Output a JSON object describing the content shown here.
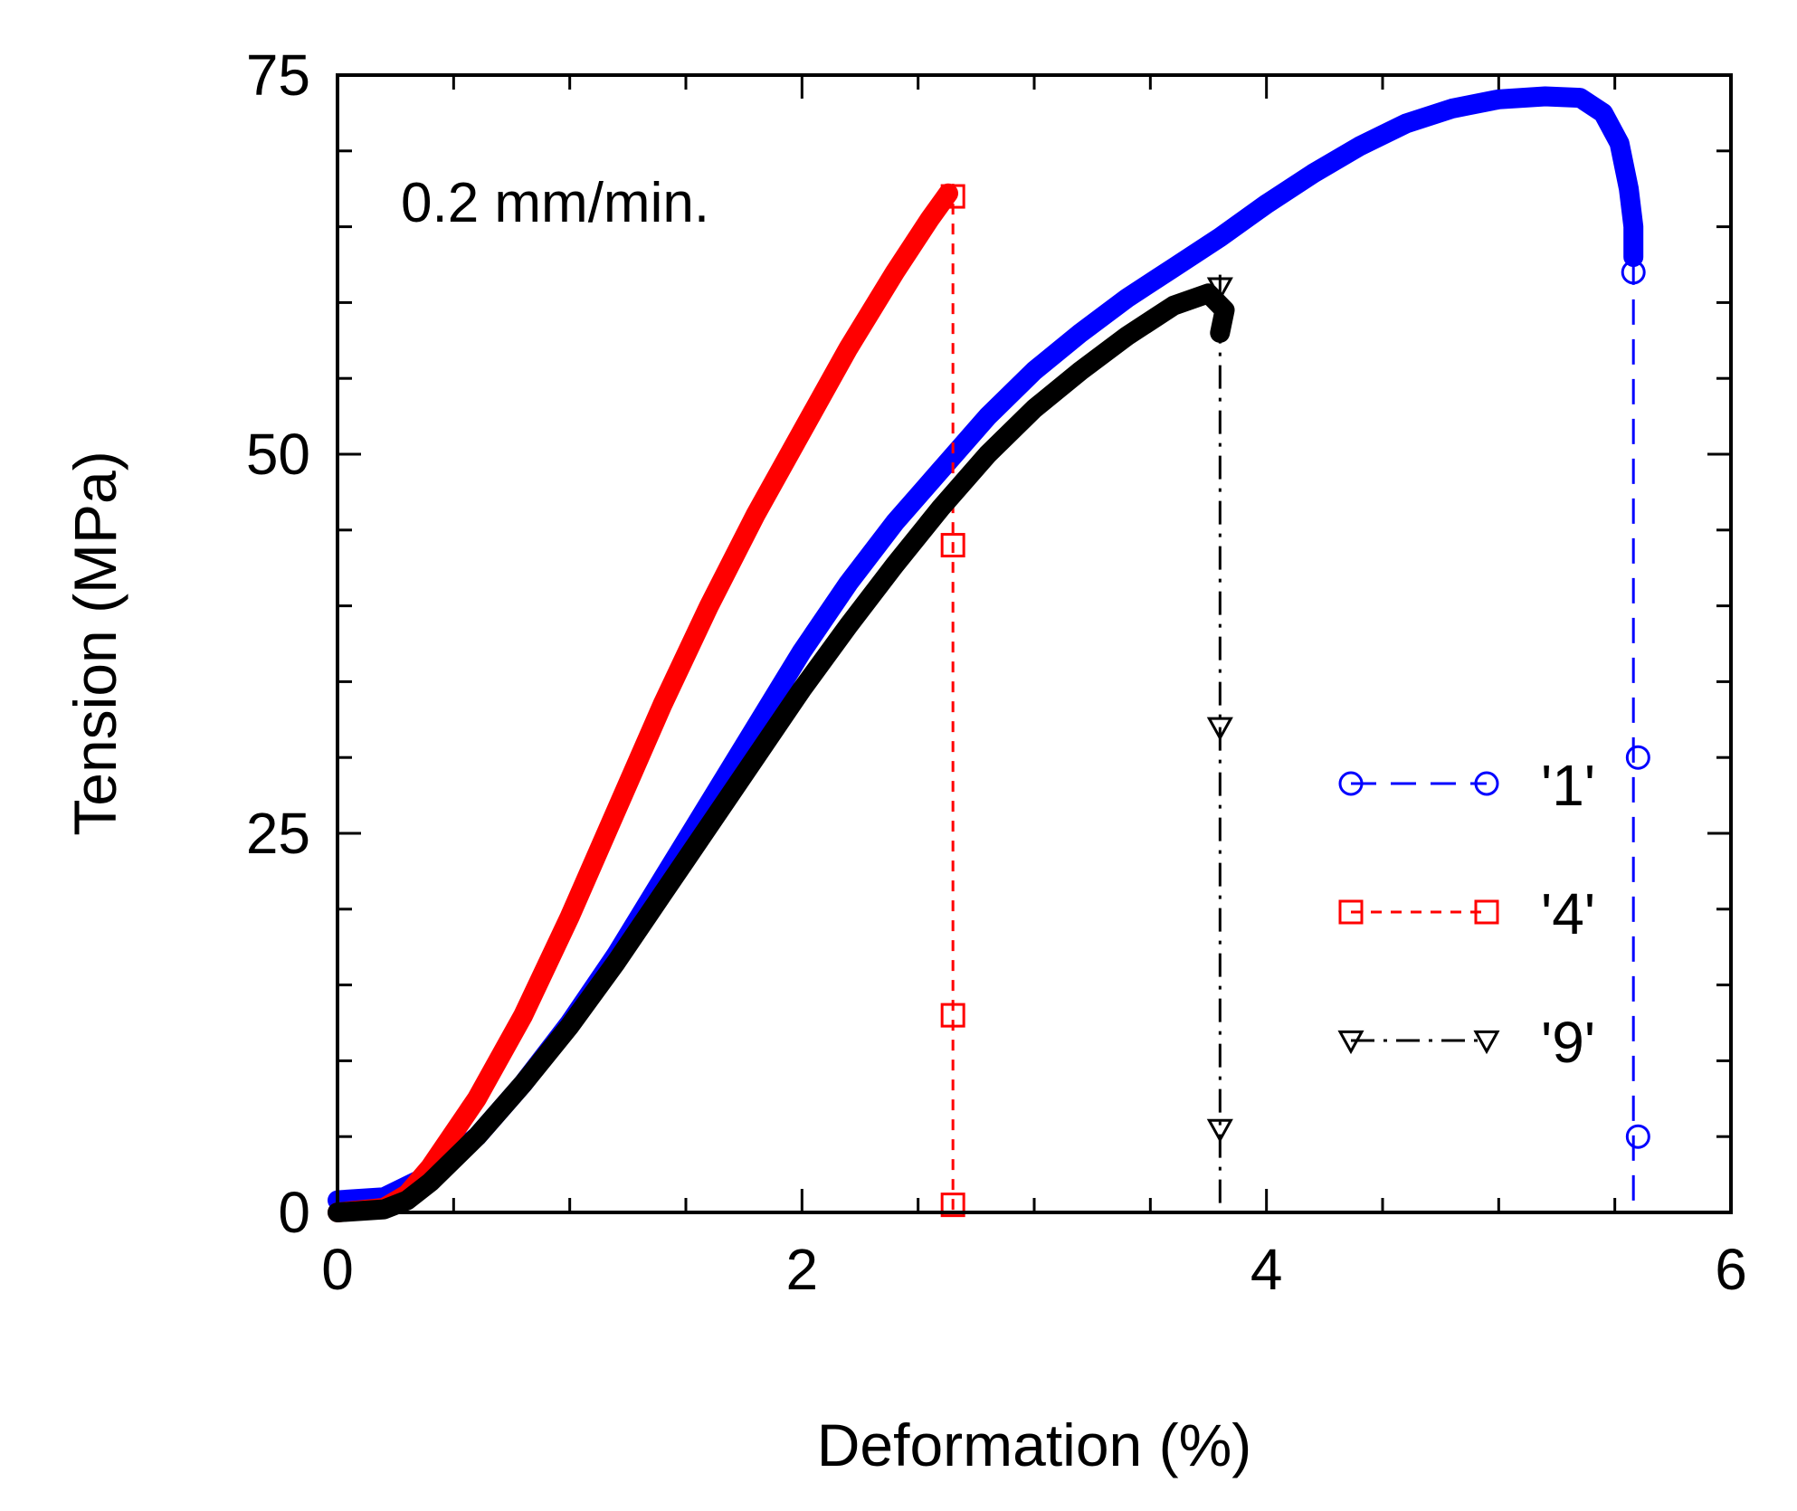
{
  "chart_data": {
    "type": "line",
    "title": "",
    "annotation": "0.2 mm/min.",
    "xlabel": "Deformation (%)",
    "ylabel": "Tension (MPa)",
    "xlim": [
      0,
      6
    ],
    "ylim": [
      0,
      75
    ],
    "x_ticks": [
      0,
      2,
      4,
      6
    ],
    "x_tick_labels": [
      "0",
      "2",
      "4",
      "6"
    ],
    "y_ticks": [
      0,
      25,
      50,
      75
    ],
    "y_tick_labels": [
      "0",
      "25",
      "50",
      "75"
    ],
    "x_minor_step": 0.5,
    "y_minor_step": 5,
    "grid": false,
    "legend_position": "middle-right",
    "series": [
      {
        "name": "'1'",
        "color": "#0000ff",
        "marker": "circle",
        "dash": "long-dash",
        "curve": [
          [
            0,
            0.8
          ],
          [
            0.2,
            1.0
          ],
          [
            0.4,
            2.5
          ],
          [
            0.6,
            5
          ],
          [
            0.8,
            8.5
          ],
          [
            1.0,
            12.5
          ],
          [
            1.2,
            17
          ],
          [
            1.4,
            22
          ],
          [
            1.6,
            27
          ],
          [
            1.8,
            32
          ],
          [
            2.0,
            37
          ],
          [
            2.2,
            41.5
          ],
          [
            2.4,
            45.5
          ],
          [
            2.6,
            49
          ],
          [
            2.8,
            52.5
          ],
          [
            3.0,
            55.5
          ],
          [
            3.2,
            58
          ],
          [
            3.4,
            60.3
          ],
          [
            3.6,
            62.3
          ],
          [
            3.8,
            64.3
          ],
          [
            4.0,
            66.5
          ],
          [
            4.2,
            68.5
          ],
          [
            4.4,
            70.3
          ],
          [
            4.6,
            71.8
          ],
          [
            4.8,
            72.8
          ],
          [
            5.0,
            73.4
          ],
          [
            5.2,
            73.6
          ],
          [
            5.35,
            73.5
          ],
          [
            5.45,
            72.5
          ],
          [
            5.52,
            70.5
          ],
          [
            5.56,
            67.5
          ],
          [
            5.58,
            65
          ],
          [
            5.58,
            63
          ]
        ],
        "drop_markers": [
          [
            5.58,
            62.0
          ],
          [
            5.6,
            30
          ],
          [
            5.6,
            5
          ]
        ]
      },
      {
        "name": "'4'",
        "color": "#ff0000",
        "marker": "square",
        "dash": "short-dash",
        "curve": [
          [
            0,
            0
          ],
          [
            0.2,
            0.3
          ],
          [
            0.3,
            1.2
          ],
          [
            0.4,
            3
          ],
          [
            0.6,
            7.5
          ],
          [
            0.8,
            13
          ],
          [
            1.0,
            19.5
          ],
          [
            1.2,
            26.5
          ],
          [
            1.4,
            33.5
          ],
          [
            1.6,
            40
          ],
          [
            1.8,
            46
          ],
          [
            2.0,
            51.5
          ],
          [
            2.2,
            57
          ],
          [
            2.4,
            62
          ],
          [
            2.55,
            65.5
          ],
          [
            2.63,
            67.2
          ]
        ],
        "drop_markers": [
          [
            2.65,
            67.0
          ],
          [
            2.65,
            44
          ],
          [
            2.65,
            13
          ],
          [
            2.65,
            0.5
          ]
        ]
      },
      {
        "name": "'9'",
        "color": "#000000",
        "marker": "triangle-down",
        "dash": "dash-dot",
        "curve": [
          [
            0,
            0
          ],
          [
            0.2,
            0.2
          ],
          [
            0.3,
            0.8
          ],
          [
            0.4,
            2
          ],
          [
            0.6,
            5
          ],
          [
            0.8,
            8.5
          ],
          [
            1.0,
            12.3
          ],
          [
            1.2,
            16.5
          ],
          [
            1.4,
            21
          ],
          [
            1.6,
            25.5
          ],
          [
            1.8,
            30
          ],
          [
            2.0,
            34.5
          ],
          [
            2.2,
            38.7
          ],
          [
            2.4,
            42.7
          ],
          [
            2.6,
            46.5
          ],
          [
            2.8,
            50
          ],
          [
            3.0,
            53
          ],
          [
            3.2,
            55.5
          ],
          [
            3.4,
            57.8
          ],
          [
            3.6,
            59.8
          ],
          [
            3.75,
            60.6
          ],
          [
            3.82,
            59.5
          ],
          [
            3.8,
            58
          ]
        ],
        "drop_markers": [
          [
            3.8,
            61.0
          ],
          [
            3.8,
            32
          ],
          [
            3.8,
            5.5
          ]
        ]
      }
    ]
  }
}
